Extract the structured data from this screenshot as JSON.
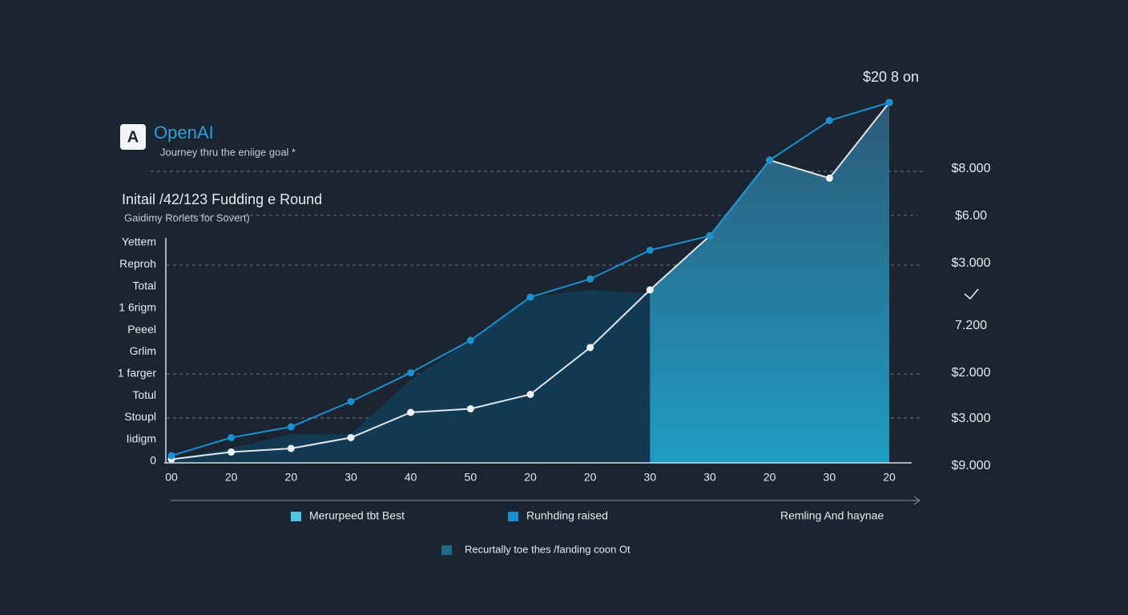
{
  "chart_data": {
    "type": "line",
    "logo": "A",
    "brand": "OpenAI",
    "tagline": "Journey thru the eniige goal *",
    "title": "Initail /42/123 Fudding e Round",
    "subtitle": "Gaidimy Rorlets for Sovert)",
    "annotation": "$20 8 on",
    "left_labels": [
      "Yettem",
      "Reproh",
      "Total",
      "1 6rigm",
      "Peeel",
      "Grlim",
      "1 farger",
      "Totul",
      "Stoupl",
      "Iidigm",
      "0"
    ],
    "right_labels": [
      "$8.000",
      "$6.00",
      "$3.000",
      "7.200",
      "$2.000",
      "$3.000",
      "$9.000"
    ],
    "categories": [
      "00",
      "20",
      "20",
      "30",
      "40",
      "50",
      "20",
      "20",
      "30",
      "30",
      "20",
      "30",
      "20"
    ],
    "ylim": [
      0,
      100
    ],
    "series": [
      {
        "name": "Runhding raised",
        "color": "#1a90d2",
        "values": [
          2,
          7,
          10,
          17,
          25,
          34,
          46,
          51,
          59,
          63,
          84,
          95,
          100
        ]
      },
      {
        "name": "Merurpeed tbt Best",
        "color": "#4fc6e2",
        "values": [
          1,
          3,
          4,
          7,
          14,
          15,
          19,
          32,
          48,
          63,
          84,
          79,
          100
        ]
      },
      {
        "name": "Recurtally toe thes /fanding coon Ot",
        "color": "#1b6a8e",
        "values": [
          1,
          4,
          8,
          8,
          23,
          34,
          46,
          48,
          47,
          null,
          null,
          null,
          null
        ]
      }
    ],
    "legend_extra": "Remling And haynae"
  }
}
